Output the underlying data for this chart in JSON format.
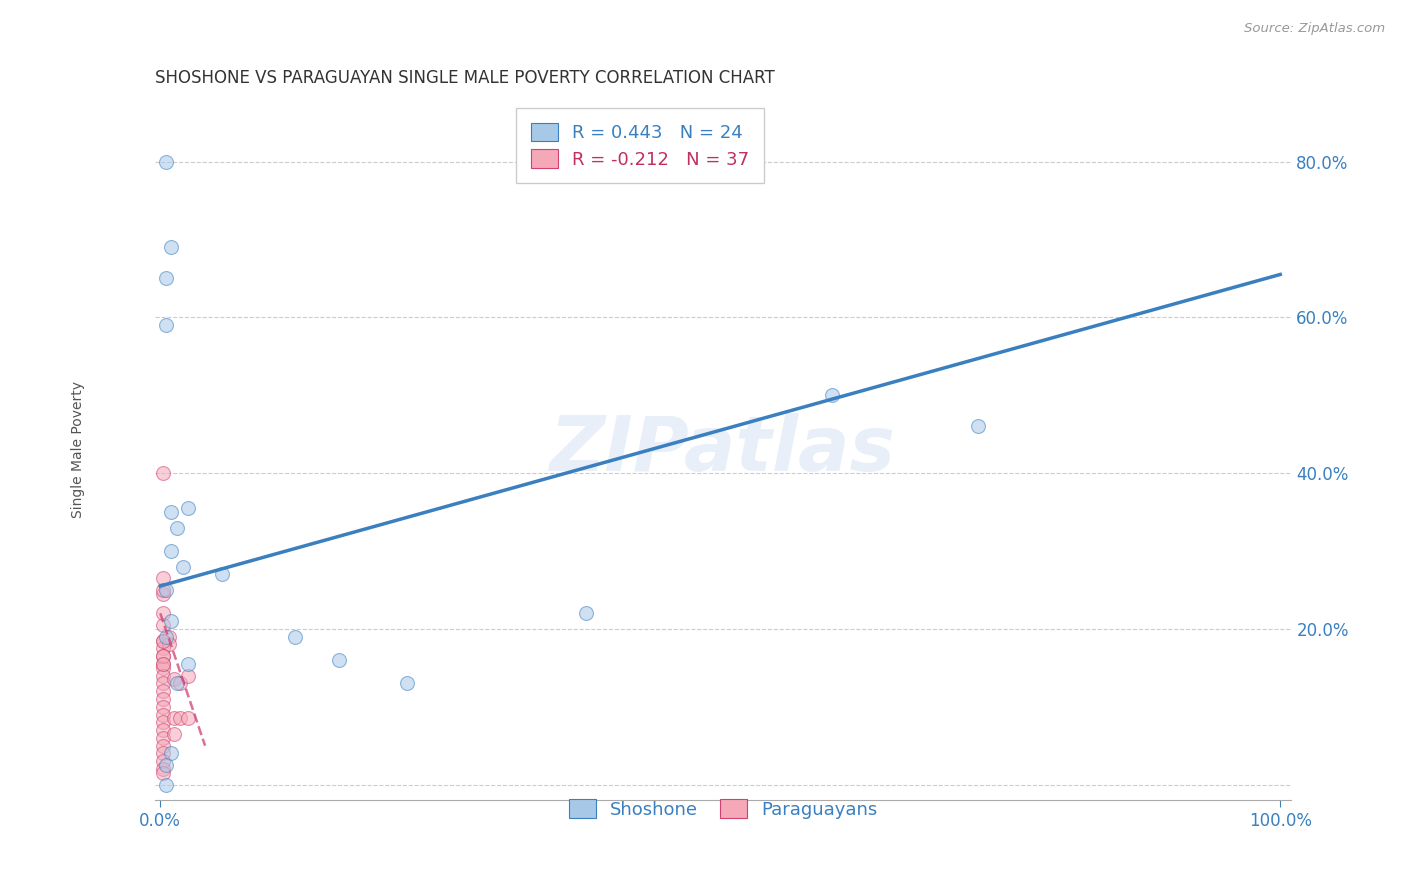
{
  "title": "SHOSHONE VS PARAGUAYAN SINGLE MALE POVERTY CORRELATION CHART",
  "source": "Source: ZipAtlas.com",
  "ylabel": "Single Male Poverty",
  "watermark": "ZIPatlas",
  "legend_labels": [
    "Shoshone",
    "Paraguayans"
  ],
  "legend_r_1": "R = 0.443   N = 24",
  "legend_r_2": "R = -0.212   N = 37",
  "shoshone_color": "#a8c8e8",
  "shoshone_line_color": "#3a80c0",
  "paraguayan_color": "#f4a8b8",
  "paraguayan_line_color": "#d04070",
  "background_color": "#ffffff",
  "grid_color": "#cccccc",
  "xlim": [
    -0.005,
    1.01
  ],
  "ylim": [
    -0.02,
    0.88
  ],
  "xtick_positions": [
    0.0,
    1.0
  ],
  "xticklabels": [
    "0.0%",
    "100.0%"
  ],
  "ytick_positions": [
    0.0,
    0.2,
    0.4,
    0.6,
    0.8
  ],
  "yticklabels": [
    "",
    "20.0%",
    "40.0%",
    "60.0%",
    "80.0%"
  ],
  "shoshone_x": [
    0.005,
    0.01,
    0.005,
    0.01,
    0.015,
    0.01,
    0.02,
    0.025,
    0.055,
    0.12,
    0.16,
    0.38,
    0.6,
    0.73,
    0.005,
    0.01,
    0.015,
    0.025,
    0.01,
    0.005,
    0.005,
    0.22,
    0.005,
    0.005
  ],
  "shoshone_y": [
    0.8,
    0.69,
    0.59,
    0.35,
    0.33,
    0.3,
    0.28,
    0.355,
    0.27,
    0.19,
    0.16,
    0.22,
    0.5,
    0.46,
    0.65,
    0.21,
    0.13,
    0.155,
    0.04,
    0.25,
    0.19,
    0.13,
    0.025,
    0.0
  ],
  "paraguayan_x": [
    0.002,
    0.002,
    0.002,
    0.002,
    0.002,
    0.002,
    0.002,
    0.002,
    0.002,
    0.002,
    0.002,
    0.002,
    0.002,
    0.002,
    0.002,
    0.002,
    0.002,
    0.002,
    0.002,
    0.002,
    0.002,
    0.002,
    0.002,
    0.002,
    0.002,
    0.008,
    0.008,
    0.012,
    0.012,
    0.012,
    0.018,
    0.018,
    0.025,
    0.025,
    0.002,
    0.002,
    0.002
  ],
  "paraguayan_y": [
    0.4,
    0.265,
    0.245,
    0.205,
    0.185,
    0.175,
    0.165,
    0.155,
    0.15,
    0.14,
    0.13,
    0.12,
    0.11,
    0.1,
    0.09,
    0.08,
    0.07,
    0.06,
    0.05,
    0.04,
    0.03,
    0.02,
    0.015,
    0.25,
    0.22,
    0.19,
    0.18,
    0.135,
    0.085,
    0.065,
    0.13,
    0.085,
    0.14,
    0.085,
    0.185,
    0.165,
    0.155
  ],
  "marker_size": 100,
  "marker_alpha": 0.55,
  "title_fontsize": 12,
  "axis_label_fontsize": 10,
  "tick_fontsize": 12,
  "legend_fontsize": 13
}
